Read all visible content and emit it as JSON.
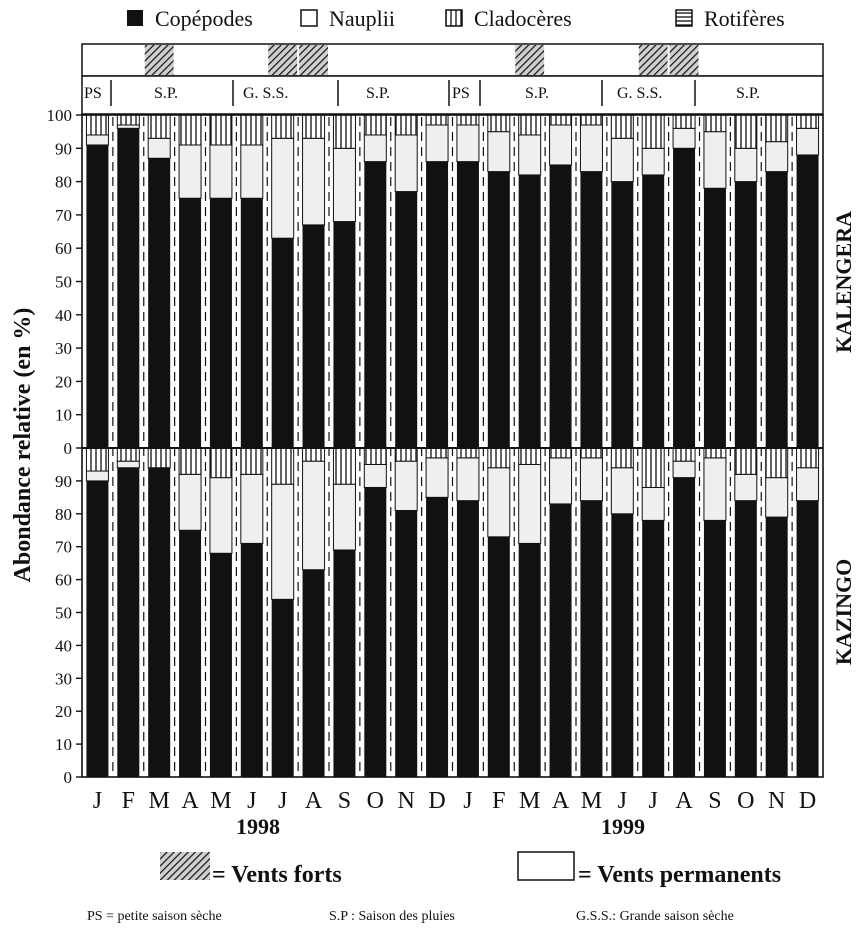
{
  "legend": {
    "items": [
      {
        "label": "Copépodes",
        "pattern": "solid"
      },
      {
        "label": "Nauplii",
        "pattern": "empty"
      },
      {
        "label": "Cladocères",
        "pattern": "vertical-hatch"
      },
      {
        "label": "Rotifères",
        "pattern": "horizontal-hatch"
      }
    ]
  },
  "seasons": [
    {
      "label": "PS"
    },
    {
      "label": "S.P."
    },
    {
      "label": "G. S.S."
    },
    {
      "label": "S.P."
    },
    {
      "label": "PS"
    },
    {
      "label": "S.P."
    },
    {
      "label": "G. S.S."
    },
    {
      "label": "S.P."
    }
  ],
  "wind_key": {
    "strong_label": "= Vents forts",
    "permanent_label": "= Vents permanents"
  },
  "footnotes": {
    "ps": "PS = petite saison sèche",
    "sp": "S.P : Saison des pluies",
    "gss": "G.S.S.: Grande saison sèche"
  },
  "colors": {
    "copepodes": "#111111",
    "nauplii": "#efefef",
    "frame": "#222222"
  },
  "chart_data": {
    "type": "bar",
    "stacked": true,
    "ylabel": "Abondance relative (en %)",
    "ylim": [
      0,
      100
    ],
    "yticks": [
      0,
      10,
      20,
      30,
      40,
      50,
      60,
      70,
      80,
      90,
      100
    ],
    "categories": [
      "J",
      "F",
      "M",
      "A",
      "M",
      "J",
      "J",
      "A",
      "S",
      "O",
      "N",
      "D",
      "J",
      "F",
      "M",
      "A",
      "M",
      "J",
      "J",
      "A",
      "S",
      "O",
      "N",
      "D"
    ],
    "years": [
      {
        "label": "1998",
        "start_index": 0
      },
      {
        "label": "1999",
        "start_index": 12
      }
    ],
    "strong_wind_months": [
      2,
      6,
      7,
      14,
      18,
      19
    ],
    "panels": [
      {
        "name": "KALENGERA",
        "series": [
          {
            "name": "Copépodes",
            "values": [
              91,
              96,
              87,
              75,
              75,
              75,
              63,
              67,
              68,
              86,
              77,
              86,
              86,
              83,
              82,
              85,
              83,
              80,
              82,
              90,
              78,
              80,
              83,
              88
            ]
          },
          {
            "name": "Nauplii",
            "values": [
              3,
              1,
              6,
              16,
              16,
              16,
              30,
              26,
              22,
              8,
              17,
              11,
              11,
              12,
              12,
              12,
              14,
              13,
              8,
              6,
              17,
              10,
              9,
              8
            ]
          },
          {
            "name": "Cladocères",
            "values": [
              6,
              3,
              7,
              9,
              9,
              9,
              7,
              7,
              10,
              6,
              6,
              3,
              3,
              5,
              6,
              3,
              3,
              7,
              10,
              4,
              5,
              10,
              8,
              4
            ]
          }
        ]
      },
      {
        "name": "KAZINGO",
        "series": [
          {
            "name": "Copépodes",
            "values": [
              90,
              94,
              94,
              75,
              68,
              71,
              54,
              63,
              69,
              88,
              81,
              85,
              84,
              73,
              71,
              83,
              84,
              80,
              78,
              91,
              78,
              84,
              79,
              84
            ]
          },
          {
            "name": "Nauplii",
            "values": [
              3,
              2,
              0,
              17,
              23,
              21,
              35,
              33,
              20,
              7,
              15,
              12,
              13,
              21,
              24,
              14,
              13,
              14,
              10,
              5,
              19,
              8,
              12,
              10
            ]
          },
          {
            "name": "Cladocères",
            "values": [
              7,
              4,
              6,
              8,
              9,
              8,
              11,
              4,
              11,
              5,
              4,
              3,
              3,
              6,
              5,
              3,
              3,
              6,
              12,
              4,
              3,
              8,
              9,
              6
            ]
          }
        ]
      }
    ]
  }
}
